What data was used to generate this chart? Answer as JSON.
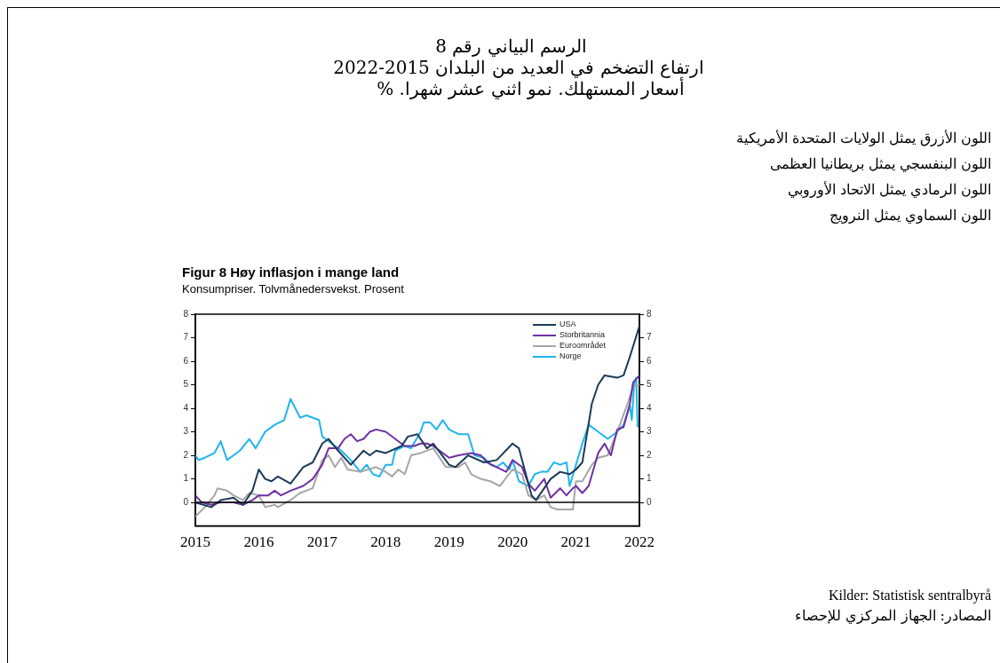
{
  "chart_data": {
    "type": "line",
    "title": "الرسم البياني رقم 8",
    "subtitle": "ارتفاع التضخم في العديد من البلدان 2015-2022",
    "annotations": [
      "أسعار المستهلك. نمو اثني عشر شهرا. %",
      "اللون الأزرق يمثل الولايات المتحدة الأمريكية",
      "اللون البنفسجي يمثل بريطانيا  العظمى",
      "اللون الرمادي يمثل الاتحاد الأوروبي",
      "اللون السماوي يمثل النرويج",
      "Figur 8 Høy inflasjon i mange land",
      "Konsumpriser. Tolvmånedersvekst. Prosent",
      "Kilder: Statistisk sentralbyrå",
      "المصادر: الجهاز المركزي للإحصاء"
    ],
    "series": [
      {
        "name": "USA",
        "color": "#1b3a57",
        "x": [
          2015.0,
          2015.25,
          2015.4,
          2015.6,
          2015.75,
          2015.9,
          2016.0,
          2016.1,
          2016.2,
          2016.3,
          2016.5,
          2016.7,
          2016.85,
          2017.0,
          2017.1,
          2017.25,
          2017.45,
          2017.65,
          2017.75,
          2017.85,
          2018.0,
          2018.25,
          2018.35,
          2018.5,
          2018.65,
          2018.75,
          2019.0,
          2019.1,
          2019.3,
          2019.55,
          2019.75,
          2020.0,
          2020.1,
          2020.3,
          2020.37,
          2020.6,
          2020.75,
          2020.9,
          2021.0,
          2021.1,
          2021.25,
          2021.35,
          2021.45,
          2021.65,
          2021.75,
          2021.85,
          2021.92,
          2022.0
        ],
        "values": [
          0.0,
          -0.2,
          0.1,
          0.2,
          -0.1,
          0.5,
          1.4,
          1.0,
          0.9,
          1.1,
          0.8,
          1.5,
          1.7,
          2.5,
          2.7,
          2.2,
          1.6,
          2.2,
          2.0,
          2.2,
          2.1,
          2.4,
          2.8,
          2.9,
          2.3,
          2.5,
          1.6,
          1.5,
          2.0,
          1.7,
          1.8,
          2.5,
          2.3,
          0.3,
          0.1,
          1.0,
          1.3,
          1.2,
          1.4,
          1.7,
          4.2,
          5.0,
          5.4,
          5.3,
          5.4,
          6.2,
          6.8,
          7.5
        ]
      },
      {
        "name": "Storbritannia",
        "color": "#7030a0",
        "x": [
          2015.0,
          2015.1,
          2015.25,
          2015.4,
          2015.6,
          2015.75,
          2015.9,
          2016.0,
          2016.15,
          2016.25,
          2016.35,
          2016.5,
          2016.7,
          2016.85,
          2017.0,
          2017.1,
          2017.25,
          2017.35,
          2017.45,
          2017.55,
          2017.65,
          2017.75,
          2017.85,
          2018.0,
          2018.15,
          2018.3,
          2018.45,
          2018.55,
          2018.65,
          2018.75,
          2019.0,
          2019.15,
          2019.35,
          2019.5,
          2019.6,
          2019.75,
          2019.9,
          2020.0,
          2020.15,
          2020.25,
          2020.35,
          2020.5,
          2020.6,
          2020.75,
          2020.85,
          2020.95,
          2021.0,
          2021.1,
          2021.2,
          2021.35,
          2021.45,
          2021.55,
          2021.65,
          2021.75,
          2021.85,
          2021.9,
          2022.0
        ],
        "values": [
          0.3,
          0.0,
          -0.1,
          0.0,
          0.0,
          -0.1,
          0.1,
          0.3,
          0.3,
          0.5,
          0.3,
          0.5,
          0.7,
          1.0,
          1.6,
          2.3,
          2.3,
          2.7,
          2.9,
          2.6,
          2.7,
          3.0,
          3.1,
          3.0,
          2.7,
          2.4,
          2.4,
          2.5,
          2.5,
          2.4,
          1.9,
          2.0,
          2.1,
          2.0,
          1.7,
          1.5,
          1.3,
          1.8,
          1.5,
          0.8,
          0.5,
          1.0,
          0.2,
          0.6,
          0.3,
          0.6,
          0.7,
          0.4,
          0.7,
          2.1,
          2.5,
          2.0,
          3.1,
          3.2,
          4.2,
          5.1,
          5.4
        ]
      },
      {
        "name": "Euroområdet",
        "color": "#a6a6a6",
        "x": [
          2015.0,
          2015.15,
          2015.3,
          2015.35,
          2015.5,
          2015.6,
          2015.75,
          2015.85,
          2016.0,
          2016.1,
          2016.25,
          2016.3,
          2016.5,
          2016.65,
          2016.85,
          2017.0,
          2017.1,
          2017.2,
          2017.3,
          2017.4,
          2017.6,
          2017.85,
          2018.0,
          2018.1,
          2018.2,
          2018.3,
          2018.4,
          2018.55,
          2018.75,
          2018.95,
          2019.15,
          2019.25,
          2019.35,
          2019.5,
          2019.65,
          2019.8,
          2020.0,
          2020.15,
          2020.25,
          2020.37,
          2020.5,
          2020.6,
          2020.7,
          2020.95,
          2021.0,
          2021.1,
          2021.25,
          2021.35,
          2021.5,
          2021.65,
          2021.8,
          2021.9,
          2022.0
        ],
        "values": [
          -0.6,
          -0.2,
          0.3,
          0.6,
          0.5,
          0.3,
          0.1,
          0.4,
          0.3,
          -0.2,
          -0.1,
          -0.2,
          0.1,
          0.4,
          0.6,
          1.8,
          2.0,
          1.5,
          1.9,
          1.4,
          1.3,
          1.5,
          1.3,
          1.1,
          1.4,
          1.2,
          2.0,
          2.1,
          2.3,
          1.5,
          1.5,
          1.7,
          1.2,
          1.0,
          0.9,
          0.7,
          1.4,
          1.2,
          0.3,
          0.1,
          0.3,
          -0.2,
          -0.3,
          -0.3,
          0.9,
          0.9,
          1.6,
          1.9,
          2.0,
          3.0,
          4.1,
          4.9,
          5.0
        ]
      },
      {
        "name": "Norge",
        "color": "#1fb4ef",
        "x": [
          2015.0,
          2015.05,
          2015.15,
          2015.3,
          2015.4,
          2015.5,
          2015.7,
          2015.85,
          2015.95,
          2016.1,
          2016.25,
          2016.4,
          2016.5,
          2016.65,
          2016.75,
          2016.95,
          2017.0,
          2017.15,
          2017.3,
          2017.45,
          2017.6,
          2017.7,
          2017.8,
          2017.9,
          2018.0,
          2018.1,
          2018.15,
          2018.3,
          2018.4,
          2018.55,
          2018.6,
          2018.7,
          2018.8,
          2018.9,
          2019.0,
          2019.15,
          2019.3,
          2019.4,
          2019.55,
          2019.65,
          2019.75,
          2019.85,
          2019.95,
          2020.0,
          2020.1,
          2020.25,
          2020.35,
          2020.45,
          2020.55,
          2020.65,
          2020.75,
          2020.85,
          2020.9,
          2021.0,
          2021.1,
          2021.2,
          2021.35,
          2021.5,
          2021.65,
          2021.75,
          2021.85,
          2021.88,
          2021.92,
          2021.95,
          2021.97
        ],
        "values": [
          2.0,
          1.8,
          1.9,
          2.1,
          2.6,
          1.8,
          2.2,
          2.7,
          2.3,
          3.0,
          3.3,
          3.5,
          4.4,
          3.6,
          3.7,
          3.5,
          2.8,
          2.5,
          2.2,
          1.8,
          1.3,
          1.6,
          1.2,
          1.1,
          1.6,
          1.6,
          2.2,
          2.4,
          2.3,
          3.0,
          3.4,
          3.4,
          3.1,
          3.5,
          3.1,
          2.9,
          2.9,
          2.0,
          1.9,
          1.6,
          1.5,
          1.7,
          1.4,
          1.8,
          0.9,
          0.7,
          1.2,
          1.3,
          1.3,
          1.7,
          1.6,
          1.7,
          0.7,
          1.6,
          2.5,
          3.3,
          3.0,
          2.7,
          3.0,
          3.3,
          4.1,
          3.5,
          5.1,
          5.3,
          3.2
        ]
      }
    ],
    "xlim": [
      2015,
      2022
    ],
    "xticks": [
      2015,
      2016,
      2017,
      2018,
      2019,
      2020,
      2021,
      2022
    ],
    "ylim": [
      -1,
      8
    ],
    "yticks": [
      0,
      1,
      2,
      3,
      4,
      5,
      6,
      7,
      8
    ],
    "y2lim": [
      -1,
      8
    ],
    "y2ticks": [
      0,
      1,
      2,
      3,
      4,
      5,
      6,
      7,
      8
    ],
    "ref_lines": [
      {
        "axis": "y",
        "value": 0,
        "color": "#000000"
      }
    ],
    "grid": false,
    "legend": "top right",
    "marker": "none",
    "line_style": "solid"
  }
}
